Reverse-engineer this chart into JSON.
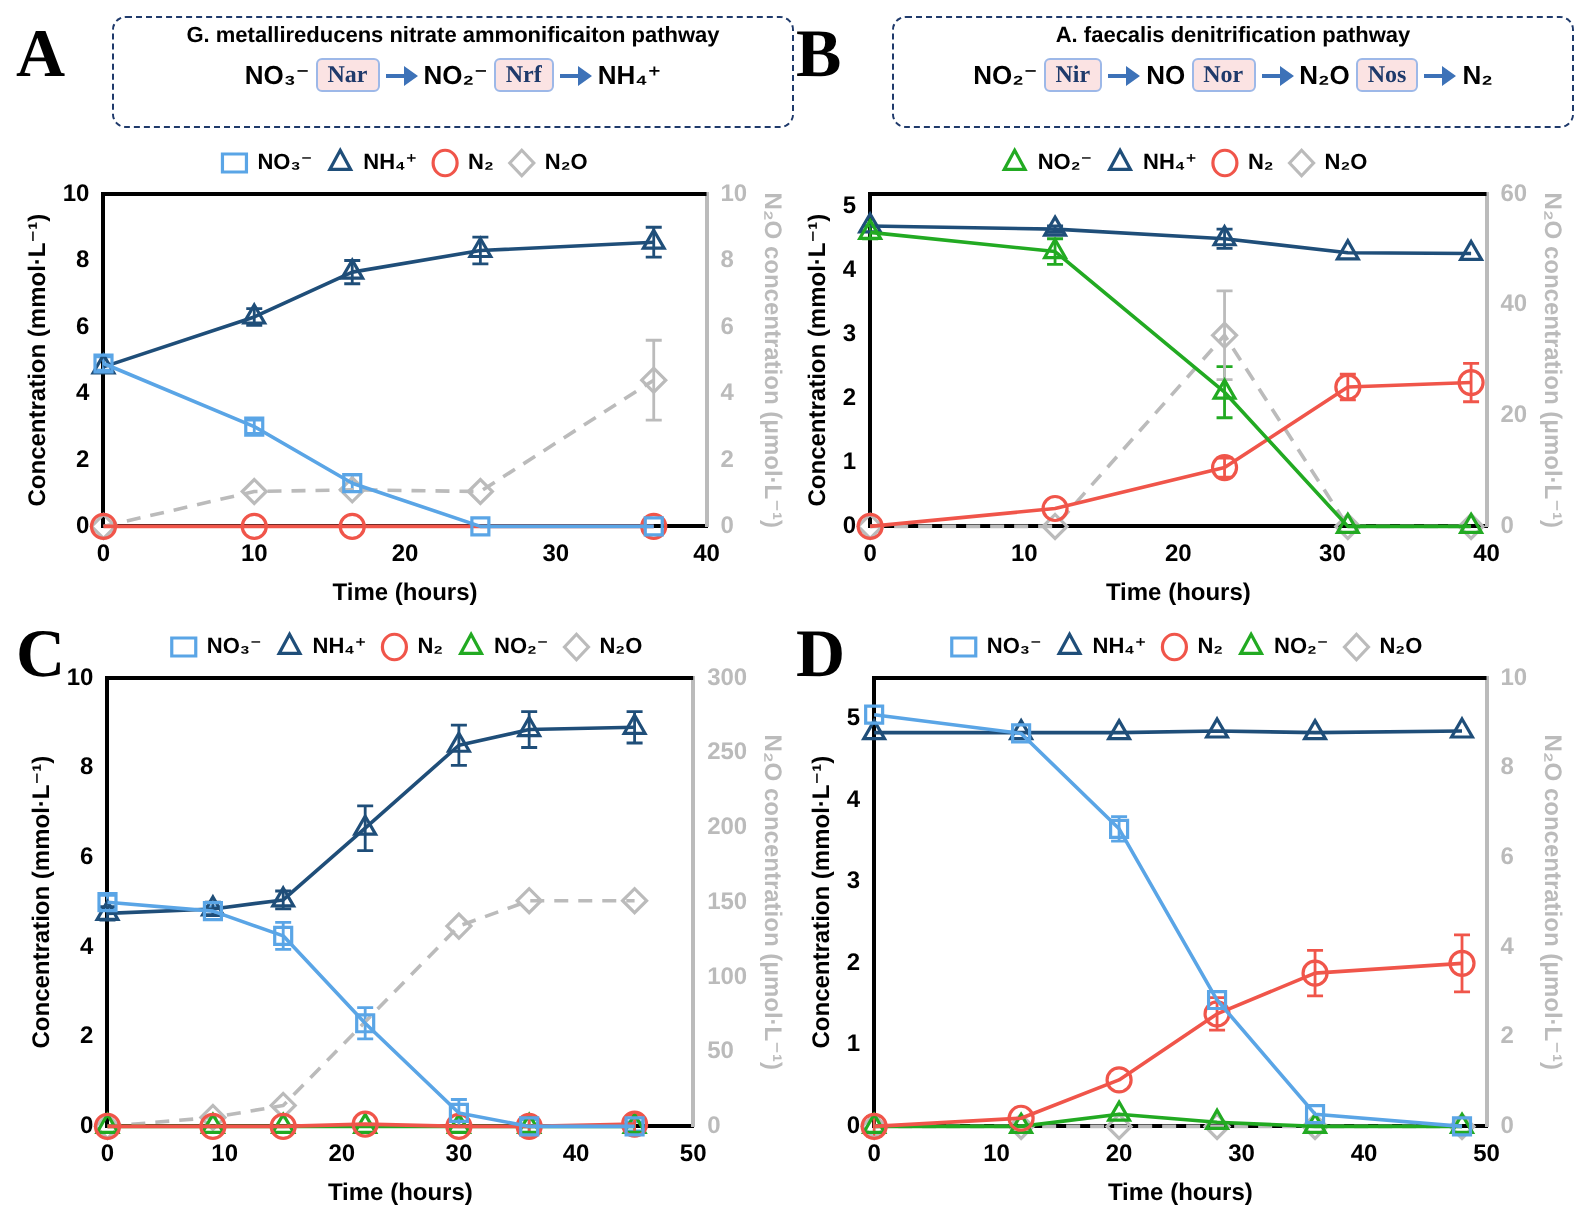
{
  "chart_data": [
    {
      "type": "line",
      "title": "A",
      "subtitle": "G. metallireducens nitrate ammonificaiton pathway",
      "annotations": [
        "NO₃⁻",
        "Nar",
        "NO₂⁻",
        "Nrf",
        "NH₄⁺"
      ],
      "xlabel": "Time (hours)",
      "ylabel": "Concentration (mmol·L⁻¹)",
      "y2label": "N₂O concentration (μmol·L⁻¹)",
      "xlim": [
        0,
        40
      ],
      "xticks": [
        0,
        10,
        20,
        30,
        40
      ],
      "ylim": [
        0,
        10
      ],
      "yticks": [
        0,
        2,
        4,
        6,
        8,
        10
      ],
      "y2lim": [
        0,
        10
      ],
      "y2ticks": [
        0,
        2,
        4,
        6,
        8,
        10
      ],
      "legend": "top",
      "grid": false,
      "series": [
        {
          "name": "NO₃⁻",
          "color": "#5aa5e6",
          "marker": "square",
          "x": [
            0,
            10,
            16.5,
            25,
            36.5
          ],
          "values": [
            4.9,
            3.0,
            1.3,
            0,
            0
          ],
          "errors": [
            0.2,
            0.2,
            0.25,
            null,
            null
          ]
        },
        {
          "name": "NH₄⁺",
          "color": "#1f4e79",
          "marker": "triangle",
          "x": [
            0,
            10,
            16.5,
            25,
            36.5
          ],
          "values": [
            4.8,
            6.3,
            7.65,
            8.3,
            8.55
          ],
          "errors": [
            null,
            0.25,
            0.35,
            0.4,
            0.45
          ]
        },
        {
          "name": "N₂",
          "color": "#f0554a",
          "marker": "circle",
          "x": [
            0,
            10,
            16.5,
            36.5
          ],
          "values": [
            0,
            0,
            0,
            0
          ]
        },
        {
          "name": "N₂O",
          "color": "#bbbbbb",
          "marker": "diamond",
          "line_style": "dashed",
          "axis": "y2",
          "x": [
            0,
            10,
            16.5,
            25,
            36.5
          ],
          "values": [
            0,
            1.05,
            1.1,
            1.05,
            4.4
          ],
          "errors": [
            null,
            null,
            null,
            null,
            1.2
          ]
        }
      ]
    },
    {
      "type": "line",
      "title": "B",
      "subtitle": "A. faecalis denitrification pathway",
      "annotations": [
        "NO₂⁻",
        "Nir",
        "NO",
        "Nor",
        "N₂O",
        "Nos",
        "N₂"
      ],
      "xlabel": "Time (hours)",
      "ylabel": "Concentration (mmol·L⁻¹)",
      "y2label": "N₂O concentration (μmol·L⁻¹)",
      "xlim": [
        0,
        40
      ],
      "xticks": [
        0,
        10,
        20,
        30,
        40
      ],
      "ylim": [
        0,
        5.2
      ],
      "yticks": [
        0,
        1,
        2,
        3,
        4,
        5
      ],
      "y2lim": [
        0,
        60
      ],
      "y2ticks": [
        0,
        20,
        40,
        60
      ],
      "legend": "top",
      "grid": false,
      "series": [
        {
          "name": "NO₂⁻",
          "color": "#22aa22",
          "marker": "triangle",
          "x": [
            0,
            12,
            23,
            31,
            39
          ],
          "values": [
            4.6,
            4.3,
            2.1,
            0,
            0
          ],
          "errors": [
            0.1,
            0.2,
            0.4,
            null,
            null
          ]
        },
        {
          "name": "NH₄⁺",
          "color": "#1f4e79",
          "marker": "triangle",
          "x": [
            0,
            12,
            23,
            31,
            39
          ],
          "values": [
            4.7,
            4.65,
            4.5,
            4.28,
            4.27
          ],
          "errors": [
            null,
            0.05,
            0.15,
            null,
            null
          ]
        },
        {
          "name": "N₂",
          "color": "#f0554a",
          "marker": "circle",
          "x": [
            0,
            12,
            23,
            31,
            39
          ],
          "values": [
            0,
            0.28,
            0.92,
            2.18,
            2.25
          ],
          "errors": [
            null,
            null,
            0.15,
            0.2,
            0.3
          ]
        },
        {
          "name": "N₂O",
          "color": "#bbbbbb",
          "marker": "diamond",
          "line_style": "dashed",
          "axis": "y2",
          "x": [
            0,
            12,
            23,
            31,
            39
          ],
          "values": [
            0,
            0,
            34.5,
            0,
            0
          ],
          "errors": [
            null,
            null,
            8,
            null,
            null
          ]
        }
      ]
    },
    {
      "type": "line",
      "title": "C",
      "xlabel": "Time (hours)",
      "ylabel": "Concentration (mmol·L⁻¹)",
      "y2label": "N₂O concentration (μmol·L⁻¹)",
      "xlim": [
        0,
        50
      ],
      "xticks": [
        0,
        10,
        20,
        30,
        40,
        50
      ],
      "ylim": [
        0,
        10
      ],
      "yticks": [
        0,
        2,
        4,
        6,
        8,
        10
      ],
      "y2lim": [
        0,
        300
      ],
      "y2ticks": [
        0,
        50,
        100,
        150,
        200,
        250,
        300
      ],
      "legend": "top",
      "grid": false,
      "series": [
        {
          "name": "NO₃⁻",
          "color": "#5aa5e6",
          "marker": "square",
          "x": [
            0,
            9,
            15,
            22,
            30,
            36,
            45
          ],
          "values": [
            5.0,
            4.8,
            4.25,
            2.3,
            0.3,
            0,
            0
          ],
          "errors": [
            0.15,
            0.1,
            0.3,
            0.35,
            0.3,
            0.15,
            0.1
          ]
        },
        {
          "name": "NH₄⁺",
          "color": "#1f4e79",
          "marker": "triangle",
          "x": [
            0,
            9,
            15,
            22,
            30,
            36,
            45
          ],
          "values": [
            4.75,
            4.85,
            5.05,
            6.65,
            8.5,
            8.85,
            8.9
          ],
          "errors": [
            0.15,
            0.15,
            0.2,
            0.5,
            0.45,
            0.4,
            0.35
          ]
        },
        {
          "name": "N₂",
          "color": "#f0554a",
          "marker": "circle",
          "x": [
            0,
            9,
            15,
            22,
            30,
            36,
            45
          ],
          "values": [
            0,
            0,
            0,
            0.05,
            0,
            0,
            0.05
          ],
          "errors": [
            null,
            null,
            null,
            null,
            null,
            0.2,
            0.2
          ]
        },
        {
          "name": "NO₂⁻",
          "color": "#22aa22",
          "marker": "triangle",
          "x": [
            0,
            9,
            15,
            22,
            30,
            36,
            45
          ],
          "values": [
            0,
            0,
            0,
            0,
            0,
            0,
            0
          ]
        },
        {
          "name": "N₂O",
          "color": "#bbbbbb",
          "marker": "diamond",
          "line_style": "dashed",
          "axis": "y2",
          "x": [
            0,
            9,
            15,
            22,
            30,
            36,
            45
          ],
          "values": [
            0,
            6,
            14,
            null,
            134,
            151,
            151
          ]
        }
      ]
    },
    {
      "type": "line",
      "title": "D",
      "xlabel": "Time (hours)",
      "ylabel": "Concentration (mmol·L⁻¹)",
      "y2label": "N₂O concentration (μmol·L⁻¹)",
      "xlim": [
        0,
        50
      ],
      "xticks": [
        0,
        10,
        20,
        30,
        40,
        50
      ],
      "ylim": [
        0,
        5.5
      ],
      "yticks": [
        0,
        1,
        2,
        3,
        4,
        5
      ],
      "y2lim": [
        0,
        10
      ],
      "y2ticks": [
        0,
        2,
        4,
        6,
        8,
        10
      ],
      "legend": "top",
      "grid": false,
      "series": [
        {
          "name": "NO₃⁻",
          "color": "#5aa5e6",
          "marker": "square",
          "x": [
            0,
            12,
            20,
            28,
            36,
            48
          ],
          "values": [
            5.05,
            4.82,
            3.65,
            1.55,
            0.15,
            0
          ],
          "errors": [
            null,
            null,
            0.15,
            null,
            null,
            null
          ]
        },
        {
          "name": "NH₄⁺",
          "color": "#1f4e79",
          "marker": "triangle",
          "x": [
            0,
            12,
            20,
            28,
            36,
            48
          ],
          "values": [
            4.83,
            4.83,
            4.83,
            4.85,
            4.83,
            4.85
          ]
        },
        {
          "name": "N₂",
          "color": "#f0554a",
          "marker": "circle",
          "x": [
            0,
            12,
            20,
            28,
            36,
            48
          ],
          "values": [
            0,
            0.1,
            0.57,
            1.38,
            1.88,
            2.0
          ],
          "errors": [
            0.12,
            null,
            null,
            0.2,
            0.28,
            0.35
          ]
        },
        {
          "name": "NO₂⁻",
          "color": "#22aa22",
          "marker": "triangle",
          "x": [
            0,
            12,
            20,
            28,
            36,
            48
          ],
          "values": [
            0,
            0,
            0.15,
            0.05,
            0,
            0
          ]
        },
        {
          "name": "N₂O",
          "color": "#bbbbbb",
          "marker": "diamond",
          "line_style": "dashed",
          "axis": "y2",
          "x": [
            0,
            12,
            20,
            28,
            36,
            48
          ],
          "values": [
            0,
            0,
            0,
            0,
            0,
            0
          ]
        }
      ]
    }
  ]
}
